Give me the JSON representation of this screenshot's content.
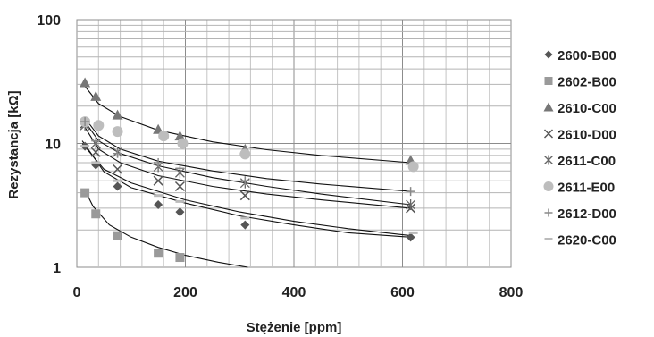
{
  "chart_data": {
    "type": "scatter",
    "xlabel": "Stężenie [ppm]",
    "ylabel": "Rezystancja [kΩ]",
    "xlim": [
      0,
      800
    ],
    "ylim": [
      1,
      100
    ],
    "yscale": "log",
    "x_ticks": [
      "0",
      "200",
      "400",
      "600",
      "800"
    ],
    "y_ticks": [
      "1",
      "10",
      "100"
    ],
    "grid": true,
    "legend_position": "right",
    "series": [
      {
        "name": "2600-B00",
        "marker": "diamond",
        "color": "#555555",
        "x": [
          15,
          35,
          75,
          150,
          190,
          310,
          615
        ],
        "y": [
          9.5,
          6.7,
          4.5,
          3.2,
          2.8,
          2.2,
          1.75
        ],
        "fit": [
          [
            10,
            10.5
          ],
          [
            50,
            5.9
          ],
          [
            100,
            4.4
          ],
          [
            200,
            3.3
          ],
          [
            300,
            2.6
          ],
          [
            400,
            2.2
          ],
          [
            500,
            1.9
          ],
          [
            615,
            1.75
          ]
        ]
      },
      {
        "name": "2602-B00",
        "marker": "square",
        "color": "#9a9a9a",
        "x": [
          15,
          35,
          75,
          150,
          190
        ],
        "y": [
          4.0,
          2.7,
          1.8,
          1.3,
          1.2
        ],
        "fit": [
          [
            15,
            4.2
          ],
          [
            30,
            3.1
          ],
          [
            60,
            2.2
          ],
          [
            100,
            1.75
          ],
          [
            150,
            1.45
          ],
          [
            200,
            1.25
          ],
          [
            260,
            1.1
          ],
          [
            315,
            1.0
          ]
        ]
      },
      {
        "name": "2610-C00",
        "marker": "triangle",
        "color": "#777777",
        "x": [
          15,
          35,
          75,
          150,
          190,
          310,
          615
        ],
        "y": [
          31,
          24,
          17,
          13,
          11.5,
          9,
          7.3
        ],
        "fit": [
          [
            15,
            29
          ],
          [
            40,
            21
          ],
          [
            80,
            16.5
          ],
          [
            150,
            12.8
          ],
          [
            250,
            10.3
          ],
          [
            350,
            8.9
          ],
          [
            450,
            8.0
          ],
          [
            615,
            7.0
          ]
        ]
      },
      {
        "name": "2610-D00",
        "marker": "x",
        "color": "#555555",
        "x": [
          15,
          35,
          75,
          150,
          190,
          310,
          615
        ],
        "y": [
          14.5,
          8.5,
          6.2,
          5.0,
          4.5,
          3.8,
          3.0
        ],
        "fit": [
          [
            15,
            13.5
          ],
          [
            40,
            9.0
          ],
          [
            80,
            7.0
          ],
          [
            150,
            5.5
          ],
          [
            250,
            4.5
          ],
          [
            350,
            3.9
          ],
          [
            450,
            3.5
          ],
          [
            615,
            3.0
          ]
        ]
      },
      {
        "name": "2611-C00",
        "marker": "asterisk",
        "color": "#666666",
        "x": [
          15,
          35,
          75,
          150,
          190,
          310,
          615
        ],
        "y": [
          14,
          10,
          8.5,
          6.5,
          5.8,
          4.8,
          3.2
        ],
        "fit": [
          [
            15,
            15
          ],
          [
            40,
            10.5
          ],
          [
            80,
            8.3
          ],
          [
            150,
            6.6
          ],
          [
            250,
            5.3
          ],
          [
            350,
            4.5
          ],
          [
            450,
            3.9
          ],
          [
            615,
            3.2
          ]
        ]
      },
      {
        "name": "2611-E00",
        "marker": "circle",
        "color": "#bdbdbd",
        "x": [
          15,
          40,
          75,
          160,
          195,
          310,
          620
        ],
        "y": [
          15,
          14,
          12.5,
          11.5,
          10,
          8.2,
          6.5
        ],
        "fit": []
      },
      {
        "name": "2612-D00",
        "marker": "plus",
        "color": "#888888",
        "x": [
          15,
          35,
          75,
          150,
          190,
          310,
          615
        ],
        "y": [
          15,
          10.5,
          8.3,
          7.0,
          6.3,
          5.0,
          4.1
        ],
        "fit": [
          [
            15,
            16
          ],
          [
            40,
            11.5
          ],
          [
            80,
            9.0
          ],
          [
            150,
            7.2
          ],
          [
            250,
            6.0
          ],
          [
            350,
            5.2
          ],
          [
            450,
            4.7
          ],
          [
            615,
            4.1
          ]
        ]
      },
      {
        "name": "2620-C00",
        "marker": "dash",
        "color": "#bbbbbb",
        "x": [
          15,
          35,
          75,
          150,
          190,
          310,
          620
        ],
        "y": [
          9.5,
          7.0,
          5.0,
          3.8,
          3.4,
          2.5,
          1.9
        ],
        "fit": [
          [
            10,
            10
          ],
          [
            50,
            6.2
          ],
          [
            100,
            4.8
          ],
          [
            200,
            3.5
          ],
          [
            300,
            2.8
          ],
          [
            400,
            2.35
          ],
          [
            500,
            2.05
          ],
          [
            615,
            1.8
          ]
        ]
      }
    ]
  }
}
